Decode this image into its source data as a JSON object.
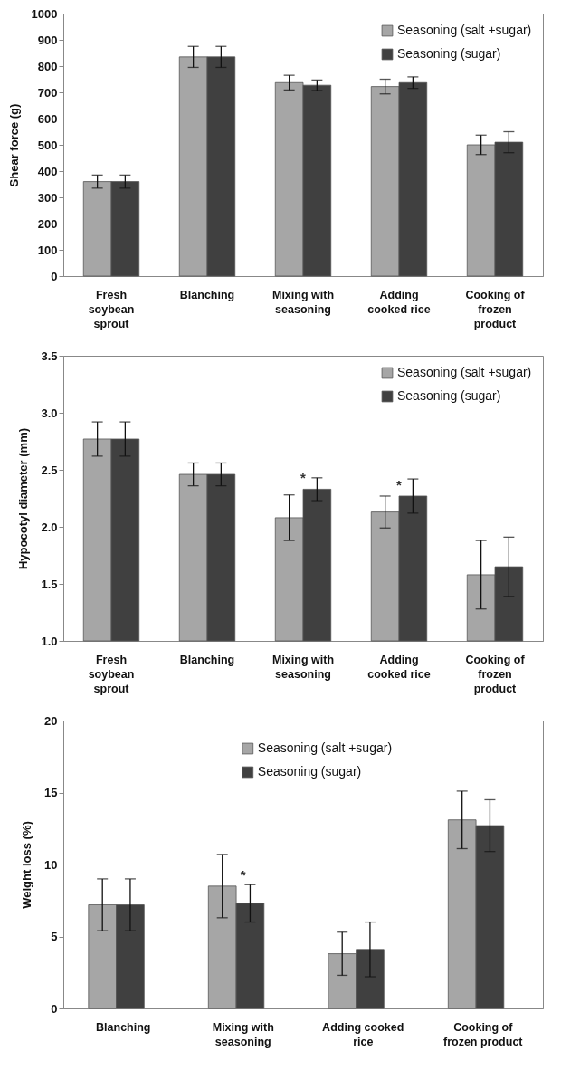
{
  "chart_data": [
    {
      "type": "bar",
      "ylabel": "Shear force (g)",
      "categories": [
        "Fresh soybean sprout",
        "Blanching",
        "Mixing with seasoning",
        "Adding cooked rice",
        "Cooking of frozen product"
      ],
      "ylim": [
        0,
        1000
      ],
      "yticks": [
        0,
        100,
        200,
        300,
        400,
        500,
        600,
        700,
        800,
        900,
        1000
      ],
      "grid": false,
      "legend": "top right",
      "series": [
        {
          "name": "Seasoning (salt +sugar)",
          "color": "#a6a6a6",
          "values": [
            360,
            835,
            737,
            722,
            500
          ],
          "errors": [
            25,
            40,
            28,
            28,
            37
          ]
        },
        {
          "name": "Seasoning (sugar)",
          "color": "#404040",
          "values": [
            360,
            835,
            727,
            737,
            510
          ],
          "errors": [
            25,
            40,
            20,
            22,
            40
          ]
        }
      ]
    },
    {
      "type": "bar",
      "ylabel": "Hypocotyl diameter (mm)",
      "categories": [
        "Fresh soybean sprout",
        "Blanching",
        "Mixing with seasoning",
        "Adding cooked rice",
        "Cooking of frozen product"
      ],
      "ylim": [
        1.0,
        3.5
      ],
      "yticks": [
        {
          "value": 1,
          "label": "1.0"
        },
        1.5,
        {
          "value": 2,
          "label": "2.0"
        },
        2.5,
        {
          "value": 3,
          "label": "3.0"
        },
        3.5
      ],
      "grid": false,
      "legend": "top right",
      "annotations": [
        {
          "text": "*",
          "x": "Mixing with seasoning",
          "y": 2.33
        },
        {
          "text": "*",
          "x": "Adding cooked rice",
          "y": 2.27
        }
      ],
      "series": [
        {
          "name": "Seasoning (salt +sugar)",
          "color": "#a6a6a6",
          "values": [
            2.77,
            2.46,
            2.08,
            2.13,
            1.58
          ],
          "errors": [
            0.15,
            0.1,
            0.2,
            0.14,
            0.3
          ]
        },
        {
          "name": "Seasoning (sugar)",
          "color": "#404040",
          "values": [
            2.77,
            2.46,
            2.33,
            2.27,
            1.65
          ],
          "errors": [
            0.15,
            0.1,
            0.1,
            0.15,
            0.26
          ]
        }
      ]
    },
    {
      "type": "bar",
      "ylabel": "Weight loss (%)",
      "categories": [
        "Blanching",
        "Mixing with seasoning",
        "Adding cooked rice",
        "Cooking of frozen product"
      ],
      "ylim": [
        0,
        20
      ],
      "yticks": [
        0,
        5,
        10,
        15,
        20
      ],
      "grid": false,
      "legend": "top",
      "annotations": [
        {
          "text": "*",
          "x": "Mixing with seasoning",
          "y": 8.5
        }
      ],
      "series": [
        {
          "name": "Seasoning (salt +sugar)",
          "color": "#a6a6a6",
          "values": [
            7.2,
            8.5,
            3.8,
            13.1
          ],
          "errors": [
            1.8,
            2.2,
            1.5,
            2.0
          ]
        },
        {
          "name": "Seasoning (sugar)",
          "color": "#404040",
          "values": [
            7.2,
            7.3,
            4.1,
            12.7
          ],
          "errors": [
            1.8,
            1.3,
            1.9,
            1.8
          ]
        }
      ]
    }
  ]
}
